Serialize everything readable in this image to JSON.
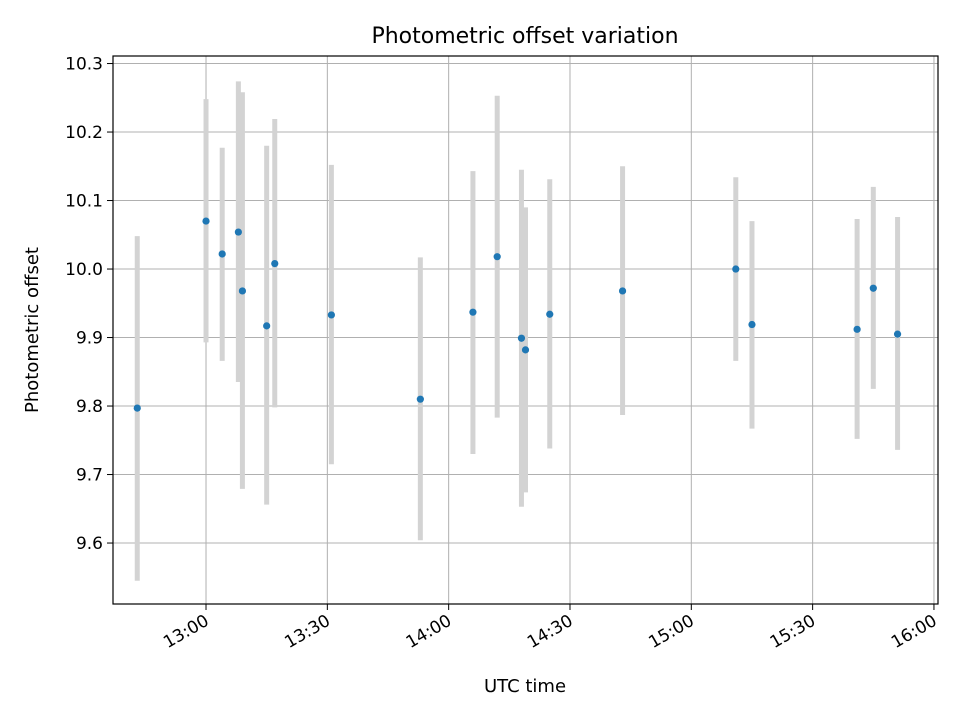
{
  "chart_data": {
    "type": "scatter",
    "title": "Photometric offset variation",
    "xlabel": "UTC time",
    "ylabel": "Photometric offset",
    "xlim": [
      "12:37",
      "16:01"
    ],
    "ylim": [
      9.511,
      10.311
    ],
    "x_ticks": [
      "13:00",
      "13:30",
      "14:00",
      "14:30",
      "15:00",
      "15:30",
      "16:00"
    ],
    "y_ticks": [
      "9.6",
      "9.7",
      "9.8",
      "9.9",
      "10.0",
      "10.1",
      "10.2",
      "10.3"
    ],
    "grid": true,
    "point_color": "#1f77b4",
    "errorbar_color": "#d3d3d3",
    "points": [
      {
        "x": "12:43",
        "y": 9.797,
        "low": 9.545,
        "high": 10.048
      },
      {
        "x": "13:00",
        "y": 10.07,
        "low": 9.893,
        "high": 10.248
      },
      {
        "x": "13:04",
        "y": 10.022,
        "low": 9.866,
        "high": 10.177
      },
      {
        "x": "13:08",
        "y": 10.054,
        "low": 9.835,
        "high": 10.274
      },
      {
        "x": "13:09",
        "y": 9.968,
        "low": 9.679,
        "high": 10.258
      },
      {
        "x": "13:15",
        "y": 9.917,
        "low": 9.656,
        "high": 10.18
      },
      {
        "x": "13:17",
        "y": 10.008,
        "low": 9.798,
        "high": 10.219
      },
      {
        "x": "13:31",
        "y": 9.933,
        "low": 9.715,
        "high": 10.152
      },
      {
        "x": "13:53",
        "y": 9.81,
        "low": 9.604,
        "high": 10.017
      },
      {
        "x": "14:06",
        "y": 9.937,
        "low": 9.73,
        "high": 10.143
      },
      {
        "x": "14:12",
        "y": 10.018,
        "low": 9.783,
        "high": 10.253
      },
      {
        "x": "14:18",
        "y": 9.899,
        "low": 9.653,
        "high": 10.145
      },
      {
        "x": "14:19",
        "y": 9.882,
        "low": 9.674,
        "high": 10.09
      },
      {
        "x": "14:25",
        "y": 9.934,
        "low": 9.738,
        "high": 10.131
      },
      {
        "x": "14:43",
        "y": 9.968,
        "low": 9.787,
        "high": 10.15
      },
      {
        "x": "15:11",
        "y": 10.0,
        "low": 9.866,
        "high": 10.134
      },
      {
        "x": "15:15",
        "y": 9.919,
        "low": 9.767,
        "high": 10.07
      },
      {
        "x": "15:41",
        "y": 9.912,
        "low": 9.752,
        "high": 10.073
      },
      {
        "x": "15:45",
        "y": 9.972,
        "low": 9.825,
        "high": 10.12
      },
      {
        "x": "15:51",
        "y": 9.905,
        "low": 9.736,
        "high": 10.076
      }
    ]
  }
}
